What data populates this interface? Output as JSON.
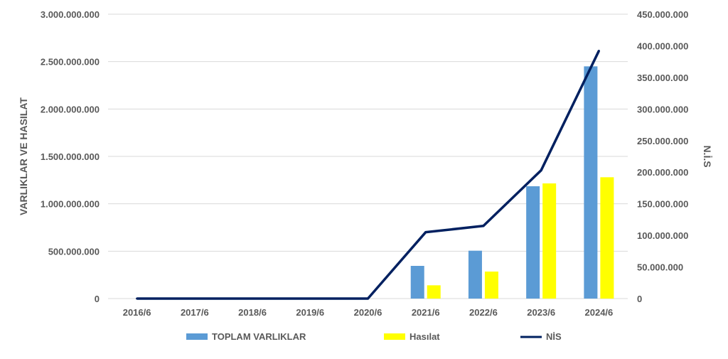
{
  "chart_data": {
    "type": "bar",
    "categories": [
      "2016/6",
      "2017/6",
      "2018/6",
      "2019/6",
      "2020/6",
      "2021/6",
      "2022/6",
      "2023/6",
      "2024/6"
    ],
    "series": [
      {
        "name": "TOPLAM VARLIKLAR",
        "kind": "bar",
        "axis": "left",
        "color": "#5B9BD5",
        "values": [
          0,
          0,
          0,
          0,
          0,
          345000000,
          505000000,
          1185000000,
          2450000000
        ]
      },
      {
        "name": "Hasılat",
        "kind": "bar",
        "axis": "left",
        "color": "#FFFF00",
        "values": [
          0,
          0,
          0,
          0,
          0,
          140000000,
          285000000,
          1215000000,
          1280000000
        ]
      },
      {
        "name": "NİS",
        "kind": "line",
        "axis": "right",
        "color": "#002060",
        "values": [
          0,
          0,
          0,
          0,
          0,
          105000000,
          115000000,
          203000000,
          392000000
        ]
      }
    ],
    "ylabel": "VARLIKLAR VE HASILAT",
    "y2label": "N.İ.S",
    "ylim": [
      0,
      3000000000
    ],
    "y2lim": [
      0,
      450000000
    ],
    "yticks": [
      "0",
      "500.000.000",
      "1.000.000.000",
      "1.500.000.000",
      "2.000.000.000",
      "2.500.000.000",
      "3.000.000.000"
    ],
    "y2ticks": [
      "0",
      "50.000.000",
      "100.000.000",
      "150.000.000",
      "200.000.000",
      "250.000.000",
      "300.000.000",
      "350.000.000",
      "400.000.000",
      "450.000.000"
    ],
    "grid": true,
    "legend_position": "bottom"
  }
}
